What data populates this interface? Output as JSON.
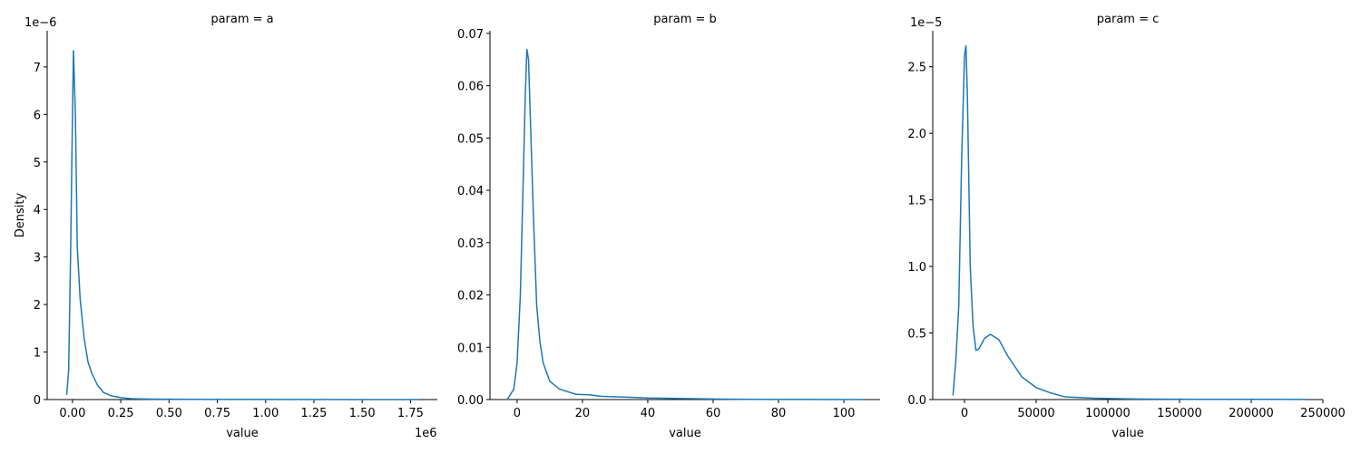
{
  "chart_data": [
    {
      "type": "line",
      "title": "param = a",
      "x_label": "value",
      "y_label": "Density",
      "y_offset": "1e−6",
      "x_offset": "1e6",
      "series": [
        {
          "name": "a",
          "color": "#1f77b4",
          "x": [
            -30000,
            -20000,
            -10000,
            0,
            5000,
            15000,
            25000,
            40000,
            60000,
            80000,
            100000,
            130000,
            160000,
            200000,
            250000,
            300000,
            400000,
            600000,
            1000000,
            1400000,
            1800000
          ],
          "values": [
            1e-07,
            6e-07,
            3e-06,
            6e-06,
            7.35e-06,
            6e-06,
            3.2e-06,
            2.1e-06,
            1.3e-06,
            8e-07,
            5.5e-07,
            3e-07,
            1.5e-07,
            8e-08,
            4e-08,
            2e-08,
            1e-08,
            5e-09,
            2e-09,
            1e-09,
            1e-09
          ]
        }
      ],
      "xlim": [
        -131000,
        1889000
      ],
      "ylim": [
        0,
        7.76e-06
      ],
      "xticks": [
        {
          "value": 0,
          "label": "0.00"
        },
        {
          "value": 250000,
          "label": "0.25"
        },
        {
          "value": 500000,
          "label": "0.50"
        },
        {
          "value": 750000,
          "label": "0.75"
        },
        {
          "value": 1000000,
          "label": "1.00"
        },
        {
          "value": 1250000,
          "label": "1.25"
        },
        {
          "value": 1500000,
          "label": "1.50"
        },
        {
          "value": 1750000,
          "label": "1.75"
        }
      ],
      "yticks": [
        0,
        {
          "value": 1e-06,
          "label": "1"
        },
        {
          "value": 2e-06,
          "label": "2"
        },
        {
          "value": 3e-06,
          "label": "3"
        },
        {
          "value": 4e-06,
          "label": "4"
        },
        {
          "value": 5e-06,
          "label": "5"
        },
        {
          "value": 6e-06,
          "label": "6"
        },
        {
          "value": 7e-06,
          "label": "7"
        }
      ]
    },
    {
      "type": "line",
      "title": "param = b",
      "x_label": "value",
      "series": [
        {
          "name": "b",
          "color": "#1f77b4",
          "x": [
            -3,
            -1,
            0,
            1,
            2,
            2.5,
            3,
            3.5,
            4,
            5,
            6,
            7,
            8,
            10,
            13,
            18,
            22,
            26,
            32,
            40,
            50,
            60,
            70,
            80,
            106
          ],
          "values": [
            0,
            0.002,
            0.007,
            0.02,
            0.045,
            0.058,
            0.067,
            0.065,
            0.055,
            0.035,
            0.018,
            0.011,
            0.007,
            0.0035,
            0.002,
            0.001,
            0.0009,
            0.0006,
            0.0005,
            0.0003,
            0.0002,
            0.0001,
            5e-05,
            3e-05,
            1e-05
          ]
        }
      ],
      "xlim": [
        -8.3,
        111.1
      ],
      "ylim": [
        0,
        0.0705
      ],
      "xticks": [
        0,
        20,
        40,
        60,
        80,
        100
      ],
      "yticks": [
        {
          "value": 0,
          "label": "0.00"
        },
        0.01,
        0.02,
        0.03,
        0.04,
        0.05,
        0.06,
        0.07
      ]
    },
    {
      "type": "line",
      "title": "param = c",
      "x_label": "value",
      "y_offset": "1e−5",
      "series": [
        {
          "name": "c",
          "color": "#1f77b4",
          "x": [
            -8000,
            -6000,
            -4000,
            -2000,
            0,
            1000,
            2000,
            4000,
            6000,
            8000,
            10000,
            14000,
            18000,
            24000,
            30000,
            40000,
            50000,
            60000,
            70000,
            90000,
            120000,
            160000,
            238000
          ],
          "values": [
            3e-07,
            3e-06,
            7e-06,
            1.8e-05,
            2.58e-05,
            2.66e-05,
            2.3e-05,
            1e-05,
            5.5e-06,
            3.7e-06,
            3.8e-06,
            4.6e-06,
            4.9e-06,
            4.5e-06,
            3.3e-06,
            1.7e-06,
            9e-07,
            5e-07,
            2e-07,
            1e-07,
            4e-08,
            2e-08,
            1e-08
          ]
        }
      ],
      "xlim": [
        -22150,
        250000
      ],
      "ylim": [
        0,
        2.77e-05
      ],
      "xticks": [
        0,
        50000,
        100000,
        150000,
        200000,
        250000
      ],
      "yticks": [
        {
          "value": 0,
          "label": "0.0"
        },
        {
          "value": 5e-06,
          "label": "0.5"
        },
        {
          "value": 1e-05,
          "label": "1.0"
        },
        {
          "value": 1.5e-05,
          "label": "1.5"
        },
        {
          "value": 2e-05,
          "label": "2.0"
        },
        {
          "value": 2.5e-05,
          "label": "2.5"
        }
      ]
    }
  ]
}
